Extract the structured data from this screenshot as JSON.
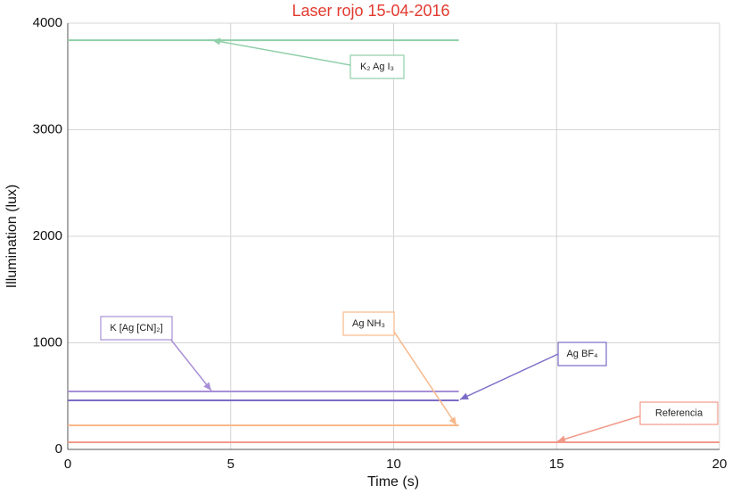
{
  "chart_data": {
    "type": "line",
    "title": "Laser rojo 15-04-2016",
    "x_label": "Time (s)",
    "y_label": "Illumination (lux)",
    "xlim": [
      0,
      20
    ],
    "xticks": [
      0,
      5,
      10,
      15,
      20
    ],
    "ylim": [
      0,
      4000
    ],
    "yticks": [
      0,
      1000,
      2000,
      3000,
      4000
    ],
    "grid": true,
    "series": [
      {
        "name": "K₂ Ag I₃",
        "color": "#8fcfa8",
        "x": [
          0,
          12
        ],
        "values": [
          3840,
          3840
        ]
      },
      {
        "name": "K [Ag [CN]₂]",
        "color": "#a88fd6",
        "x": [
          0,
          12
        ],
        "values": [
          544,
          544
        ]
      },
      {
        "name": "Ag BF₄",
        "color": "#7a6cc6",
        "x": [
          0,
          12
        ],
        "values": [
          460,
          460
        ]
      },
      {
        "name": "Ag NH₃",
        "color": "#f7b98c",
        "x": [
          0,
          12
        ],
        "values": [
          226,
          226
        ]
      },
      {
        "name": "Referencia",
        "color": "#f29a8a",
        "x": [
          0,
          20
        ],
        "values": [
          67,
          67
        ]
      }
    ]
  }
}
